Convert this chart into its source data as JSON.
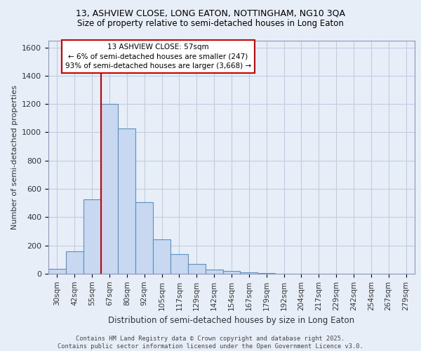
{
  "title1": "13, ASHVIEW CLOSE, LONG EATON, NOTTINGHAM, NG10 3QA",
  "title2": "Size of property relative to semi-detached houses in Long Eaton",
  "xlabel": "Distribution of semi-detached houses by size in Long Eaton",
  "ylabel": "Number of semi-detached properties",
  "categories": [
    "30sqm",
    "42sqm",
    "55sqm",
    "67sqm",
    "80sqm",
    "92sqm",
    "105sqm",
    "117sqm",
    "129sqm",
    "142sqm",
    "154sqm",
    "167sqm",
    "179sqm",
    "192sqm",
    "204sqm",
    "217sqm",
    "229sqm",
    "242sqm",
    "254sqm",
    "267sqm",
    "279sqm"
  ],
  "values": [
    35,
    160,
    525,
    1200,
    1025,
    505,
    245,
    140,
    68,
    30,
    20,
    8,
    5,
    0,
    0,
    0,
    0,
    0,
    0,
    0,
    0
  ],
  "bar_color": "#c8d8f0",
  "bar_edge_color": "#5a8fc0",
  "highlight_color": "#cc0000",
  "annotation_title": "13 ASHVIEW CLOSE: 57sqm",
  "annotation_line1": "← 6% of semi-detached houses are smaller (247)",
  "annotation_line2": "93% of semi-detached houses are larger (3,668) →",
  "ylim": [
    0,
    1650
  ],
  "yticks": [
    0,
    200,
    400,
    600,
    800,
    1000,
    1200,
    1400,
    1600
  ],
  "background_color": "#e8eef8",
  "footer": "Contains HM Land Registry data © Crown copyright and database right 2025.\nContains public sector information licensed under the Open Government Licence v3.0.",
  "annotation_box_color": "#ffffff",
  "annotation_box_edge": "#cc0000",
  "grid_color": "#c0cce0"
}
